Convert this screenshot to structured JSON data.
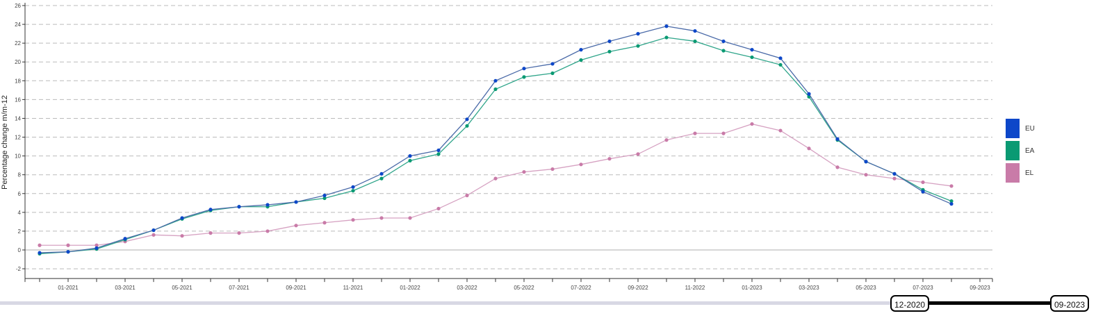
{
  "chart_data": {
    "type": "line",
    "ylabel": "Percentage change m/m-12",
    "xlabel": "",
    "ylim": [
      -2,
      26
    ],
    "yticks": [
      -2,
      0,
      2,
      4,
      6,
      8,
      10,
      12,
      14,
      16,
      18,
      20,
      22,
      24,
      26
    ],
    "x": [
      "12-2020",
      "01-2021",
      "02-2021",
      "03-2021",
      "04-2021",
      "05-2021",
      "06-2021",
      "07-2021",
      "08-2021",
      "09-2021",
      "10-2021",
      "11-2021",
      "12-2021",
      "01-2022",
      "02-2022",
      "03-2022",
      "04-2022",
      "05-2022",
      "06-2022",
      "07-2022",
      "08-2022",
      "09-2022",
      "10-2022",
      "11-2022",
      "12-2022",
      "01-2023",
      "02-2023",
      "03-2023",
      "04-2023",
      "05-2023",
      "06-2023",
      "07-2023",
      "08-2023"
    ],
    "xtick_labels": [
      "01-2021",
      "03-2021",
      "05-2021",
      "07-2021",
      "09-2021",
      "11-2021",
      "01-2022",
      "03-2022",
      "05-2022",
      "07-2022",
      "09-2022",
      "11-2022",
      "01-2023",
      "03-2023",
      "05-2023",
      "07-2023",
      "09-2023"
    ],
    "grid": "horizontal dashed",
    "legend_position": "right",
    "series": [
      {
        "name": "EU",
        "color": "#0d47c9",
        "line_color": "#4a6aa8",
        "values": [
          -0.3,
          -0.2,
          0.2,
          1.2,
          2.1,
          3.4,
          4.3,
          4.6,
          4.8,
          5.1,
          5.8,
          6.7,
          8.1,
          10.0,
          10.6,
          13.9,
          18.0,
          19.3,
          19.8,
          21.3,
          22.2,
          23.0,
          23.8,
          23.3,
          22.2,
          21.3,
          20.4,
          16.6,
          11.8,
          9.4,
          8.1,
          6.2,
          4.9
        ]
      },
      {
        "name": "EA",
        "color": "#0a9a73",
        "line_color": "#2fa58a",
        "values": [
          -0.4,
          -0.2,
          0.1,
          1.1,
          2.1,
          3.3,
          4.2,
          4.6,
          4.6,
          5.1,
          5.5,
          6.3,
          7.6,
          9.5,
          10.2,
          13.2,
          17.1,
          18.4,
          18.8,
          20.2,
          21.1,
          21.7,
          22.6,
          22.2,
          21.2,
          20.5,
          19.7,
          16.3,
          11.7,
          9.4,
          8.1,
          6.4,
          5.2
        ]
      },
      {
        "name": "EL",
        "color": "#c97ba8",
        "line_color": "#d6a2c2",
        "values": [
          0.5,
          0.5,
          0.5,
          0.9,
          1.6,
          1.5,
          1.8,
          1.8,
          2.0,
          2.6,
          2.9,
          3.2,
          3.4,
          3.4,
          4.4,
          5.8,
          7.6,
          8.3,
          8.6,
          9.1,
          9.7,
          10.2,
          11.7,
          12.4,
          12.4,
          13.4,
          12.7,
          10.8,
          8.8,
          8.0,
          7.6,
          7.2,
          6.8
        ]
      }
    ]
  },
  "range_slider": {
    "start": "12-2020",
    "end": "09-2023"
  }
}
